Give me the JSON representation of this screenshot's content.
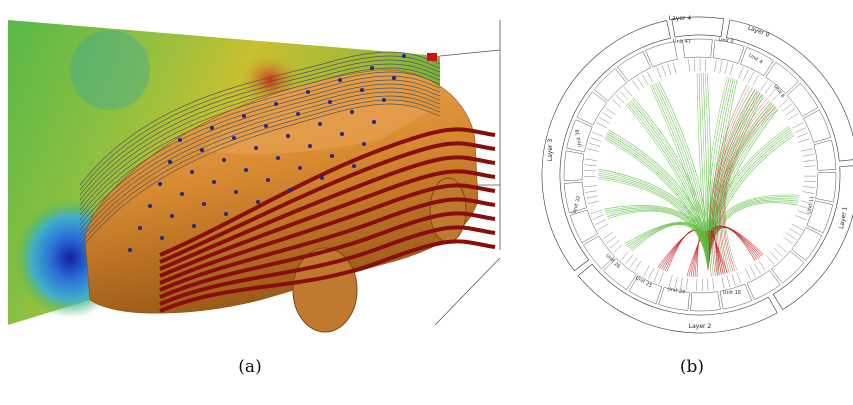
{
  "figure": {
    "panels": [
      {
        "caption": "(a)"
      },
      {
        "caption": "(b)",
        "layer_labels": [
          "Layer 4",
          "Layer 0",
          "Layer 1",
          "Layer 2",
          "Layer 3"
        ],
        "unit_labels": [
          "Unit 47",
          "Unit 0",
          "Unit 4",
          "Unit 6",
          "Unit 11",
          "Unit 16",
          "Unit 24",
          "Unit 25",
          "Unit 26",
          "Unit 32",
          "Unit 38"
        ]
      }
    ]
  }
}
